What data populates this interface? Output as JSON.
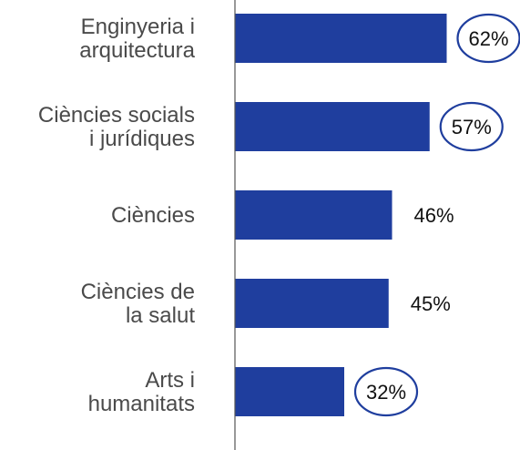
{
  "chart_data": {
    "type": "bar",
    "orientation": "horizontal",
    "categories": [
      [
        "Enginyeria i",
        "arquitectura"
      ],
      [
        "Ciències socials",
        "i jurídiques"
      ],
      [
        "Ciències"
      ],
      [
        "Ciències de",
        "la salut"
      ],
      [
        "Arts i",
        "humanitats"
      ]
    ],
    "values": [
      62,
      57,
      46,
      45,
      32
    ],
    "value_labels": [
      "62%",
      "57%",
      "46%",
      "45%",
      "32%"
    ],
    "highlighted": [
      true,
      true,
      false,
      false,
      true
    ],
    "title": "",
    "xlabel": "",
    "ylabel": "",
    "xlim": [
      0,
      100
    ],
    "grid": false,
    "legend": "none",
    "colors": {
      "bar": "#1f3e9e",
      "highlight_ring": "#1f3e9e",
      "axis": "#555555",
      "category_text": "#4a4a4a",
      "value_text": "#111111"
    }
  }
}
